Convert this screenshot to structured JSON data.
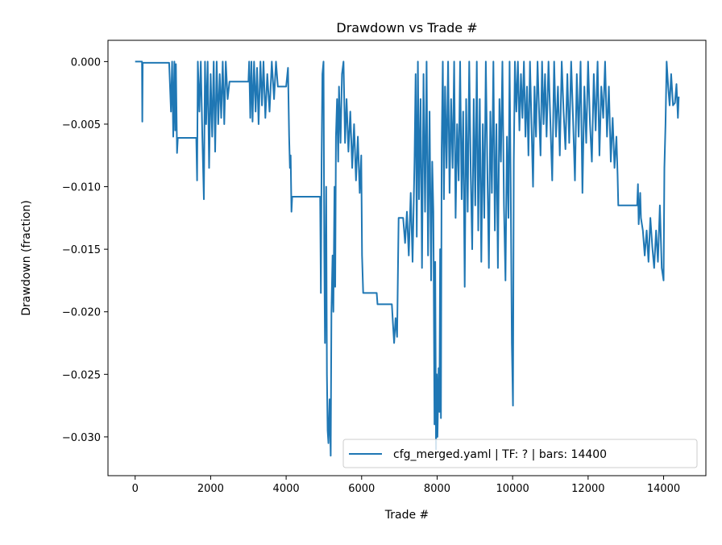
{
  "chart_data": {
    "type": "line",
    "title": "Drawdown vs Trade #",
    "xlabel": "Trade #",
    "ylabel": "Drawdown (fraction)",
    "xlim": [
      -720,
      15120
    ],
    "ylim": [
      -0.0331,
      0.0017
    ],
    "xticks": [
      0,
      2000,
      4000,
      6000,
      8000,
      10000,
      12000,
      14000
    ],
    "xtick_labels": [
      "0",
      "2000",
      "4000",
      "6000",
      "8000",
      "10000",
      "12000",
      "14000"
    ],
    "yticks": [
      0,
      -0.005,
      -0.01,
      -0.015,
      -0.02,
      -0.025,
      -0.03
    ],
    "ytick_labels": [
      "0.000",
      "−0.005",
      "−0.010",
      "−0.015",
      "−0.020",
      "−0.025",
      "−0.030"
    ],
    "grid": false,
    "legend_position": "lower-right",
    "series": [
      {
        "name": "cfg_merged.yaml | TF: ? | bars: 14400",
        "color": "#1f77b4",
        "points": [
          [
            0,
            0
          ],
          [
            180,
            0
          ],
          [
            190,
            -0.0048
          ],
          [
            200,
            -0.0001
          ],
          [
            900,
            -0.0001
          ],
          [
            950,
            -0.004
          ],
          [
            980,
            0
          ],
          [
            1010,
            -0.006
          ],
          [
            1040,
            0
          ],
          [
            1060,
            -0.0055
          ],
          [
            1080,
            -0.0002
          ],
          [
            1110,
            -0.0073
          ],
          [
            1130,
            -0.0061
          ],
          [
            1620,
            -0.0061
          ],
          [
            1640,
            -0.0095
          ],
          [
            1660,
            0
          ],
          [
            1700,
            -0.004
          ],
          [
            1740,
            0
          ],
          [
            1780,
            -0.006
          ],
          [
            1820,
            -0.011
          ],
          [
            1850,
            0
          ],
          [
            1880,
            -0.005
          ],
          [
            1920,
            0
          ],
          [
            1960,
            -0.0085
          ],
          [
            2000,
            -0.001
          ],
          [
            2040,
            -0.006
          ],
          [
            2080,
            0
          ],
          [
            2120,
            -0.0072
          ],
          [
            2160,
            0
          ],
          [
            2200,
            -0.005
          ],
          [
            2240,
            -0.001
          ],
          [
            2280,
            -0.0045
          ],
          [
            2320,
            0
          ],
          [
            2360,
            -0.005
          ],
          [
            2400,
            0
          ],
          [
            2450,
            -0.003
          ],
          [
            2500,
            -0.0016
          ],
          [
            3000,
            -0.0016
          ],
          [
            3020,
            0
          ],
          [
            3050,
            -0.0045
          ],
          [
            3080,
            0
          ],
          [
            3110,
            -0.0048
          ],
          [
            3150,
            0
          ],
          [
            3190,
            -0.004
          ],
          [
            3230,
            -0.0005
          ],
          [
            3270,
            -0.005
          ],
          [
            3320,
            0
          ],
          [
            3360,
            -0.0035
          ],
          [
            3400,
            0
          ],
          [
            3450,
            -0.0045
          ],
          [
            3500,
            -0.001
          ],
          [
            3560,
            -0.004
          ],
          [
            3620,
            0
          ],
          [
            3680,
            -0.003
          ],
          [
            3730,
            0
          ],
          [
            3780,
            -0.002
          ],
          [
            4000,
            -0.002
          ],
          [
            4050,
            -0.0005
          ],
          [
            4080,
            -0.006
          ],
          [
            4100,
            -0.0085
          ],
          [
            4120,
            -0.0075
          ],
          [
            4140,
            -0.012
          ],
          [
            4160,
            -0.0108
          ],
          [
            4900,
            -0.0108
          ],
          [
            4920,
            -0.0185
          ],
          [
            4940,
            -0.008
          ],
          [
            4960,
            -0.001
          ],
          [
            4990,
            0
          ],
          [
            5010,
            -0.015
          ],
          [
            5030,
            -0.0225
          ],
          [
            5060,
            -0.01
          ],
          [
            5080,
            -0.025
          ],
          [
            5100,
            -0.0295
          ],
          [
            5120,
            -0.0305
          ],
          [
            5150,
            -0.027
          ],
          [
            5180,
            -0.0315
          ],
          [
            5200,
            -0.02
          ],
          [
            5230,
            -0.0155
          ],
          [
            5250,
            -0.02
          ],
          [
            5280,
            -0.01
          ],
          [
            5300,
            -0.018
          ],
          [
            5320,
            -0.006
          ],
          [
            5350,
            -0.003
          ],
          [
            5380,
            -0.008
          ],
          [
            5400,
            -0.002
          ],
          [
            5440,
            -0.0065
          ],
          [
            5480,
            -0.001
          ],
          [
            5520,
            0
          ],
          [
            5560,
            -0.0065
          ],
          [
            5600,
            -0.003
          ],
          [
            5650,
            -0.0072
          ],
          [
            5700,
            -0.004
          ],
          [
            5750,
            -0.0085
          ],
          [
            5800,
            -0.005
          ],
          [
            5850,
            -0.0095
          ],
          [
            5900,
            -0.006
          ],
          [
            5950,
            -0.0105
          ],
          [
            5990,
            -0.0075
          ],
          [
            6010,
            -0.0155
          ],
          [
            6040,
            -0.0185
          ],
          [
            6400,
            -0.0185
          ],
          [
            6420,
            -0.0194
          ],
          [
            6800,
            -0.0194
          ],
          [
            6830,
            -0.021
          ],
          [
            6860,
            -0.0225
          ],
          [
            6900,
            -0.0205
          ],
          [
            6940,
            -0.022
          ],
          [
            6980,
            -0.0125
          ],
          [
            7100,
            -0.0125
          ],
          [
            7150,
            -0.0145
          ],
          [
            7200,
            -0.012
          ],
          [
            7250,
            -0.0155
          ],
          [
            7300,
            -0.0105
          ],
          [
            7350,
            -0.016
          ],
          [
            7400,
            -0.008
          ],
          [
            7430,
            -0.001
          ],
          [
            7460,
            -0.014
          ],
          [
            7490,
            0
          ],
          [
            7520,
            -0.011
          ],
          [
            7560,
            -0.003
          ],
          [
            7600,
            -0.0165
          ],
          [
            7640,
            -0.001
          ],
          [
            7680,
            -0.012
          ],
          [
            7720,
            0
          ],
          [
            7760,
            -0.0155
          ],
          [
            7800,
            -0.004
          ],
          [
            7840,
            -0.0175
          ],
          [
            7870,
            -0.008
          ],
          [
            7900,
            -0.012
          ],
          [
            7930,
            -0.029
          ],
          [
            7950,
            -0.016
          ],
          [
            7970,
            -0.031
          ],
          [
            7990,
            -0.025
          ],
          [
            8010,
            -0.03
          ],
          [
            8040,
            -0.0245
          ],
          [
            8060,
            -0.028
          ],
          [
            8080,
            -0.015
          ],
          [
            8100,
            -0.0285
          ],
          [
            8120,
            -0.007
          ],
          [
            8150,
            0
          ],
          [
            8180,
            -0.011
          ],
          [
            8210,
            -0.002
          ],
          [
            8250,
            -0.0085
          ],
          [
            8290,
            0
          ],
          [
            8330,
            -0.0105
          ],
          [
            8370,
            -0.003
          ],
          [
            8410,
            -0.0085
          ],
          [
            8450,
            0
          ],
          [
            8490,
            -0.0125
          ],
          [
            8530,
            -0.005
          ],
          [
            8570,
            -0.0095
          ],
          [
            8610,
            0
          ],
          [
            8650,
            -0.011
          ],
          [
            8690,
            -0.004
          ],
          [
            8730,
            -0.018
          ],
          [
            8770,
            -0.003
          ],
          [
            8810,
            -0.012
          ],
          [
            8850,
            0
          ],
          [
            8890,
            -0.009
          ],
          [
            8930,
            -0.015
          ],
          [
            8970,
            -0.003
          ],
          [
            9010,
            -0.0115
          ],
          [
            9050,
            0
          ],
          [
            9090,
            -0.0135
          ],
          [
            9130,
            -0.003
          ],
          [
            9170,
            -0.016
          ],
          [
            9210,
            -0.005
          ],
          [
            9250,
            -0.0125
          ],
          [
            9290,
            0
          ],
          [
            9330,
            -0.0085
          ],
          [
            9370,
            -0.0165
          ],
          [
            9410,
            -0.004
          ],
          [
            9450,
            -0.0105
          ],
          [
            9490,
            0
          ],
          [
            9530,
            -0.0135
          ],
          [
            9570,
            -0.005
          ],
          [
            9610,
            -0.0165
          ],
          [
            9650,
            -0.003
          ],
          [
            9690,
            -0.008
          ],
          [
            9730,
            0
          ],
          [
            9770,
            -0.0115
          ],
          [
            9810,
            -0.0175
          ],
          [
            9850,
            -0.006
          ],
          [
            9890,
            -0.0125
          ],
          [
            9920,
            0
          ],
          [
            9950,
            -0.01
          ],
          [
            9980,
            -0.0225
          ],
          [
            10010,
            -0.0275
          ],
          [
            10030,
            -0.008
          ],
          [
            10060,
            0
          ],
          [
            10100,
            -0.004
          ],
          [
            10140,
            0
          ],
          [
            10180,
            -0.0055
          ],
          [
            10220,
            -0.001
          ],
          [
            10260,
            -0.0045
          ],
          [
            10300,
            0
          ],
          [
            10340,
            -0.006
          ],
          [
            10380,
            -0.002
          ],
          [
            10420,
            -0.0075
          ],
          [
            10460,
            0
          ],
          [
            10500,
            -0.005
          ],
          [
            10540,
            -0.01
          ],
          [
            10580,
            -0.002
          ],
          [
            10620,
            -0.006
          ],
          [
            10660,
            0
          ],
          [
            10700,
            -0.004
          ],
          [
            10740,
            -0.0075
          ],
          [
            10780,
            0
          ],
          [
            10820,
            -0.005
          ],
          [
            10860,
            -0.001
          ],
          [
            10900,
            -0.006
          ],
          [
            10950,
            0
          ],
          [
            11000,
            -0.0048
          ],
          [
            11050,
            -0.0095
          ],
          [
            11100,
            0
          ],
          [
            11150,
            -0.006
          ],
          [
            11200,
            -0.002
          ],
          [
            11250,
            -0.0075
          ],
          [
            11300,
            0
          ],
          [
            11350,
            -0.004
          ],
          [
            11400,
            -0.007
          ],
          [
            11450,
            -0.001
          ],
          [
            11500,
            -0.0065
          ],
          [
            11550,
            0
          ],
          [
            11600,
            -0.0045
          ],
          [
            11650,
            -0.0095
          ],
          [
            11700,
            -0.001
          ],
          [
            11750,
            -0.006
          ],
          [
            11800,
            0
          ],
          [
            11850,
            -0.0105
          ],
          [
            11900,
            -0.002
          ],
          [
            11950,
            -0.0065
          ],
          [
            12000,
            0
          ],
          [
            12050,
            -0.005
          ],
          [
            12100,
            -0.008
          ],
          [
            12150,
            -0.001
          ],
          [
            12200,
            -0.0055
          ],
          [
            12250,
            0
          ],
          [
            12300,
            -0.0075
          ],
          [
            12350,
            -0.002
          ],
          [
            12400,
            -0.0045
          ],
          [
            12450,
            0
          ],
          [
            12500,
            -0.006
          ],
          [
            12550,
            -0.002
          ],
          [
            12600,
            -0.008
          ],
          [
            12650,
            -0.0045
          ],
          [
            12700,
            -0.0085
          ],
          [
            12750,
            -0.006
          ],
          [
            12780,
            -0.009
          ],
          [
            12800,
            -0.0115
          ],
          [
            13300,
            -0.0115
          ],
          [
            13320,
            -0.0098
          ],
          [
            13340,
            -0.013
          ],
          [
            13380,
            -0.0105
          ],
          [
            13400,
            -0.0125
          ],
          [
            13450,
            -0.0135
          ],
          [
            13500,
            -0.0155
          ],
          [
            13550,
            -0.0135
          ],
          [
            13600,
            -0.016
          ],
          [
            13650,
            -0.0125
          ],
          [
            13700,
            -0.0148
          ],
          [
            13750,
            -0.0165
          ],
          [
            13800,
            -0.0135
          ],
          [
            13850,
            -0.016
          ],
          [
            13900,
            -0.0115
          ],
          [
            13950,
            -0.0165
          ],
          [
            14000,
            -0.0175
          ],
          [
            14020,
            -0.0085
          ],
          [
            14050,
            -0.005
          ],
          [
            14080,
            0
          ],
          [
            14120,
            -0.002
          ],
          [
            14160,
            -0.0035
          ],
          [
            14200,
            -0.001
          ],
          [
            14250,
            -0.0035
          ],
          [
            14300,
            -0.0033
          ],
          [
            14340,
            -0.0018
          ],
          [
            14380,
            -0.0045
          ],
          [
            14400,
            -0.0028
          ]
        ]
      }
    ]
  }
}
